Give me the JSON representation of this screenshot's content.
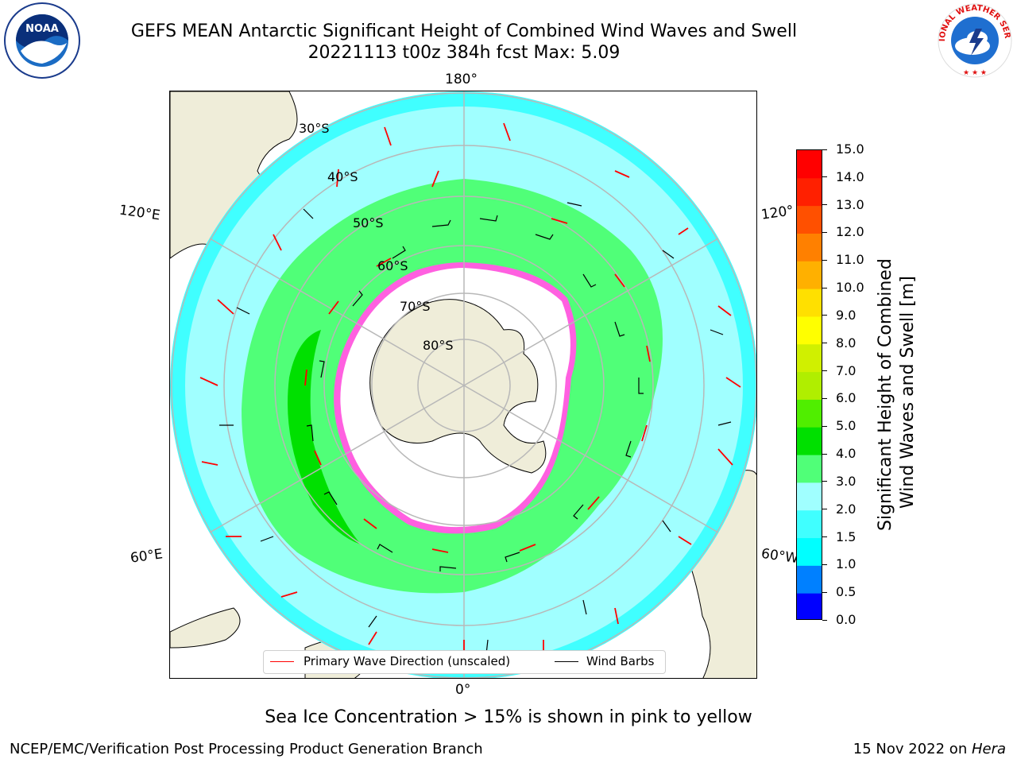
{
  "title": {
    "line1": "GEFS MEAN Antarctic Significant Height of Combined Wind Waves and Swell",
    "line2": "20221113 t00z 384h fcst   Max: 5.09"
  },
  "map": {
    "projection": "south-polar-stereographic",
    "lon_labels": {
      "top": "180°",
      "bottom": "0°",
      "upper_left": "120°E",
      "upper_right": "120°",
      "lower_left": "60°E",
      "lower_right": "60°W"
    },
    "lat_labels": [
      "30°S",
      "40°S",
      "50°S",
      "60°S",
      "70°S",
      "80°S"
    ],
    "colors": {
      "land": "#efedd9",
      "ocean_blank": "#ffffff",
      "graticule": "#b8b8b8",
      "wave_arrow": "#ff0000",
      "wind_barb": "#000000"
    }
  },
  "legend": {
    "wave_label": "Primary Wave Direction (unscaled)",
    "wind_label": "Wind Barbs"
  },
  "colorbar": {
    "label_line1": "Significant Height of Combined",
    "label_line2": "Wind Waves and Swell [m]",
    "ticks": [
      "0.0",
      "0.5",
      "1.0",
      "1.5",
      "2.0",
      "3.0",
      "4.0",
      "5.0",
      "6.0",
      "7.0",
      "8.0",
      "9.0",
      "10.0",
      "11.0",
      "12.0",
      "13.0",
      "14.0",
      "15.0"
    ],
    "colors": [
      "#0000ff",
      "#0080ff",
      "#00ffff",
      "#40ffff",
      "#a0ffff",
      "#50ff78",
      "#00e000",
      "#50ee00",
      "#b0ee00",
      "#d0f000",
      "#ffff00",
      "#ffe000",
      "#ffb000",
      "#ff8000",
      "#ff5000",
      "#ff2000",
      "#ff0000"
    ]
  },
  "note": "Sea Ice Concentration > 15% is shown in pink to yellow",
  "footer": {
    "left": "NCEP/EMC/Verification Post Processing Product Generation Branch",
    "date": "15 Nov 2022 on ",
    "machine": "Hera"
  },
  "logos": {
    "left": "NOAA",
    "right": "NATIONAL WEATHER SERVICE"
  }
}
